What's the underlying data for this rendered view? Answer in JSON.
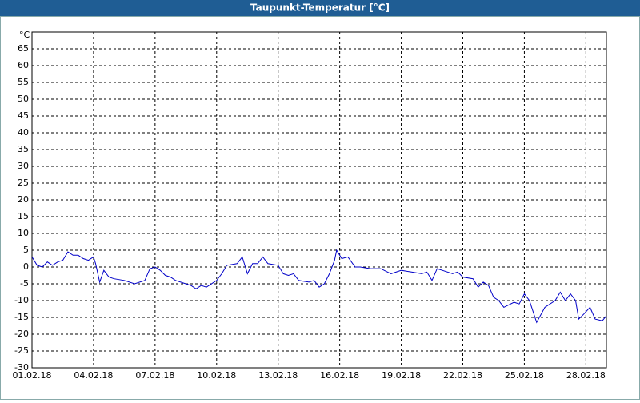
{
  "chart_data": {
    "type": "line",
    "title": "Taupunkt-Temperatur [°C]",
    "y_label": "°C",
    "x": [
      1.0,
      1.25,
      1.5,
      1.75,
      2.0,
      2.25,
      2.5,
      2.75,
      3.0,
      3.25,
      3.5,
      3.75,
      4.0,
      4.1,
      4.3,
      4.5,
      4.75,
      5.0,
      5.5,
      6.0,
      6.5,
      6.75,
      7.0,
      7.25,
      7.5,
      7.75,
      8.0,
      8.5,
      8.75,
      9.0,
      9.25,
      9.5,
      10.0,
      10.25,
      10.5,
      11.0,
      11.25,
      11.5,
      11.75,
      12.0,
      12.25,
      12.5,
      13.0,
      13.25,
      13.5,
      13.75,
      14.0,
      14.5,
      14.75,
      15.0,
      15.25,
      15.5,
      15.75,
      15.85,
      16.1,
      16.4,
      16.75,
      17.0,
      17.5,
      18.0,
      18.5,
      19.0,
      19.5,
      20.0,
      20.25,
      20.5,
      20.75,
      21.0,
      21.5,
      21.75,
      22.0,
      22.5,
      22.75,
      23.0,
      23.25,
      23.5,
      23.75,
      24.0,
      24.5,
      24.75,
      25.0,
      25.25,
      25.6,
      26.0,
      26.5,
      26.75,
      27.0,
      27.25,
      27.5,
      27.65,
      27.9,
      28.2,
      28.45,
      28.8,
      29.0
    ],
    "values": [
      3,
      0.5,
      0,
      1.5,
      0.5,
      1.5,
      2,
      4.5,
      3.5,
      3.5,
      2.5,
      2,
      3,
      1,
      -4.5,
      -1,
      -3,
      -3.5,
      -4,
      -5,
      -4,
      -0.5,
      0,
      -1,
      -2.5,
      -3,
      -4,
      -5,
      -5.5,
      -6.5,
      -5.5,
      -6,
      -4,
      -2,
      0.5,
      1,
      3,
      -2,
      1,
      1,
      3,
      1,
      0.5,
      -2,
      -2.5,
      -2,
      -4,
      -4.5,
      -4,
      -6,
      -5,
      -2,
      2,
      5,
      2.5,
      3,
      0,
      0,
      -0.5,
      -0.5,
      -2,
      -1,
      -1.5,
      -2,
      -1.5,
      -4,
      -0.5,
      -1,
      -2,
      -1.5,
      -3,
      -3.5,
      -6,
      -4.5,
      -5.5,
      -9,
      -10,
      -12,
      -10.5,
      -11,
      -8,
      -10,
      -16.5,
      -12,
      -10,
      -7.5,
      -10,
      -8,
      -10,
      -15.5,
      -14,
      -12,
      -15.5,
      -16,
      -14.5
    ],
    "color": "#0000c8",
    "xlim": [
      1,
      29
    ],
    "xticks": [
      {
        "value": 1,
        "label": "01.02.18"
      },
      {
        "value": 4,
        "label": "04.02.18"
      },
      {
        "value": 7,
        "label": "07.02.18"
      },
      {
        "value": 10,
        "label": "10.02.18"
      },
      {
        "value": 13,
        "label": "13.02.18"
      },
      {
        "value": 16,
        "label": "16.02.18"
      },
      {
        "value": 19,
        "label": "19.02.18"
      },
      {
        "value": 22,
        "label": "22.02.18"
      },
      {
        "value": 25,
        "label": "25.02.18"
      },
      {
        "value": 28,
        "label": "28.02.18"
      }
    ],
    "ylim": [
      -30,
      70
    ],
    "yticks": [
      -30,
      -25,
      -20,
      -15,
      -10,
      -5,
      0,
      5,
      10,
      15,
      20,
      25,
      30,
      35,
      40,
      45,
      50,
      55,
      60,
      65
    ],
    "grid": true
  }
}
